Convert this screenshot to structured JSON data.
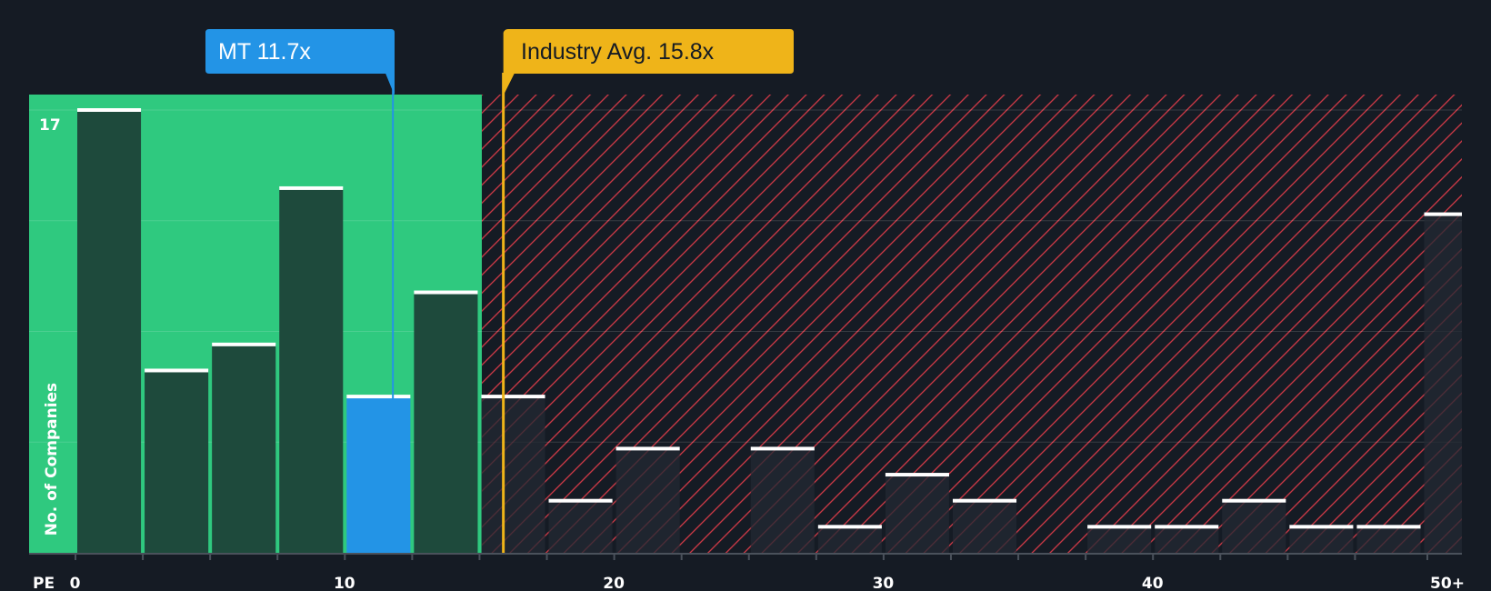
{
  "chart_data": {
    "type": "bar",
    "title": "",
    "xlabel": "PE",
    "ylabel": "No. of Companies",
    "x_ticks": [
      {
        "value": 0,
        "label": "0"
      },
      {
        "value": 10,
        "label": "10"
      },
      {
        "value": 20,
        "label": "20"
      },
      {
        "value": 30,
        "label": "30"
      },
      {
        "value": 40,
        "label": "40"
      },
      {
        "value": 50,
        "label": "50+"
      }
    ],
    "y_max_label": "17",
    "ylim": [
      0,
      17
    ],
    "bin_width": 2.5,
    "bins": [
      {
        "start": 0,
        "value": 17
      },
      {
        "start": 2.5,
        "value": 7
      },
      {
        "start": 5,
        "value": 8
      },
      {
        "start": 7.5,
        "value": 14
      },
      {
        "start": 10,
        "value": 6
      },
      {
        "start": 12.5,
        "value": 10
      },
      {
        "start": 15,
        "value": 6
      },
      {
        "start": 17.5,
        "value": 2
      },
      {
        "start": 20,
        "value": 4
      },
      {
        "start": 22.5,
        "value": 0
      },
      {
        "start": 25,
        "value": 4
      },
      {
        "start": 27.5,
        "value": 1
      },
      {
        "start": 30,
        "value": 3
      },
      {
        "start": 32.5,
        "value": 2
      },
      {
        "start": 35,
        "value": 0
      },
      {
        "start": 37.5,
        "value": 1
      },
      {
        "start": 40,
        "value": 1
      },
      {
        "start": 42.5,
        "value": 2
      },
      {
        "start": 45,
        "value": 1
      },
      {
        "start": 47.5,
        "value": 1
      },
      {
        "start": 50,
        "value": 13
      }
    ],
    "company": {
      "label": "MT 11.7x",
      "value": 11.7
    },
    "industry_avg": {
      "label": "Industry Avg. 15.8x",
      "value": 15.8
    },
    "colors": {
      "background": "#151b24",
      "undervalued_zone": "#2fc97f",
      "bar_in_zone": "#1e4a3c",
      "company_bar": "#2394e6",
      "bar_over": "#232a33",
      "hatch": "#d13a47",
      "company_callout": "#2394e6",
      "industry_callout": "#efb419",
      "cap": "#ffffff"
    }
  }
}
